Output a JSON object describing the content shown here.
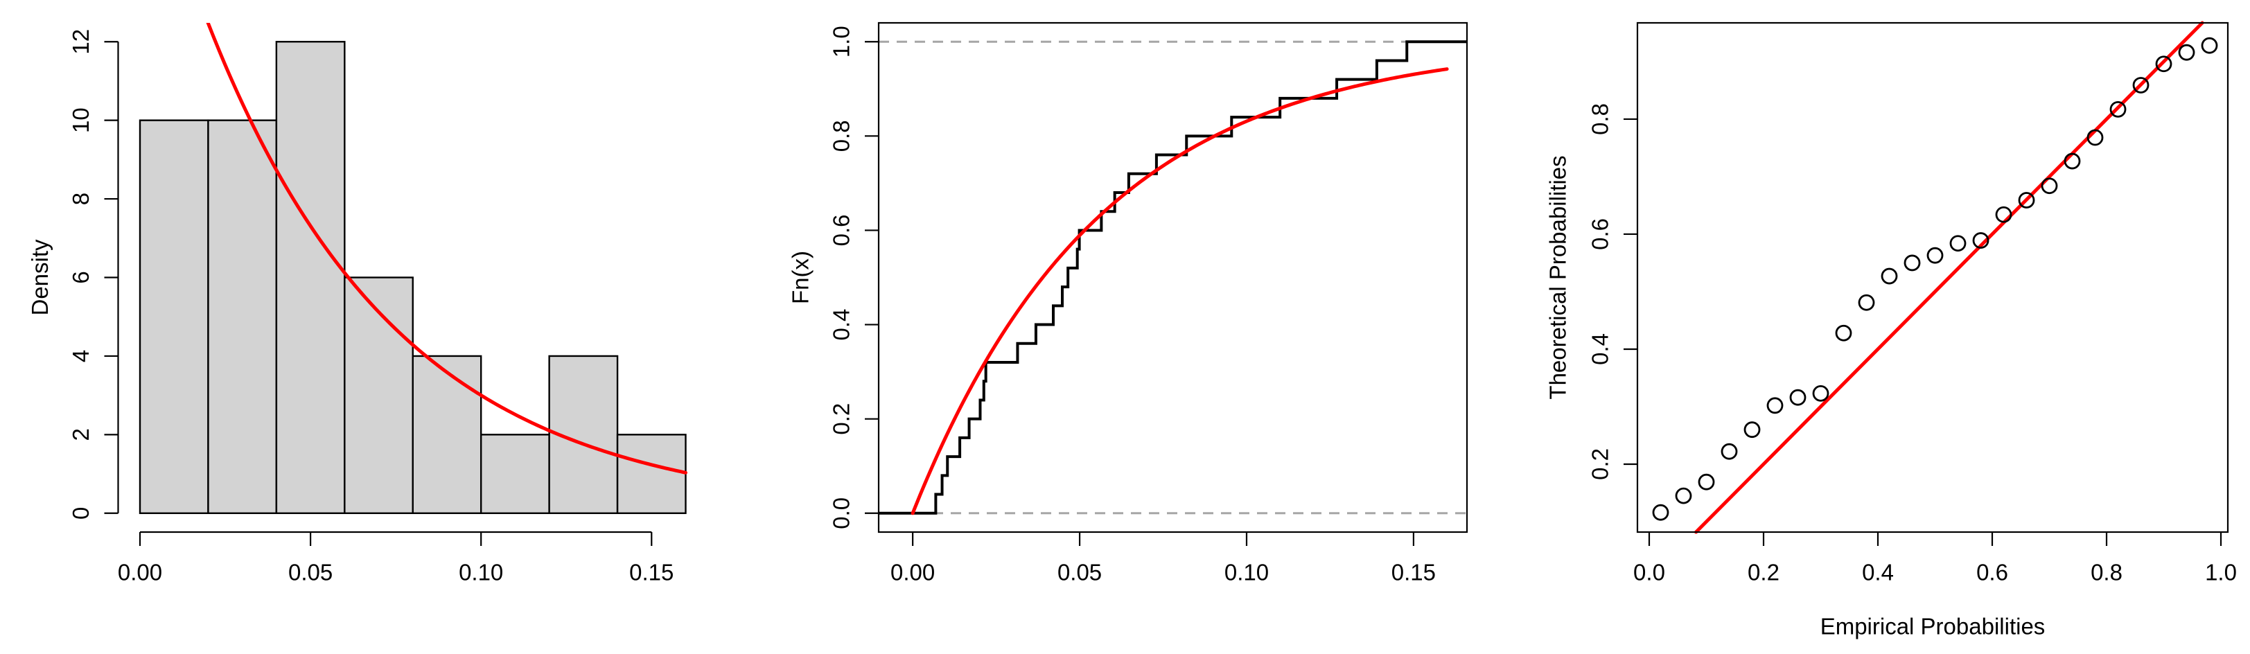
{
  "figure": {
    "background": "#ffffff",
    "description": "Three-panel exponential distribution fit diagnostics"
  },
  "colors": {
    "fit_red": "#ff0000",
    "bar_fill": "#d3d3d3",
    "line_black": "#000000",
    "ref_dash_gray": "#a6a6a6"
  },
  "chart_data": [
    {
      "id": "histogram",
      "type": "bar",
      "title": "",
      "xlabel": "",
      "ylabel": "Density",
      "bin_edges": [
        0.0,
        0.02,
        0.04,
        0.06,
        0.08,
        0.1,
        0.12,
        0.14,
        0.16
      ],
      "values": [
        10,
        10,
        12,
        6,
        4,
        2,
        4,
        2
      ],
      "x_ticks": {
        "values": [
          0.0,
          0.05,
          0.1,
          0.15
        ],
        "labels": [
          "0.00",
          "0.05",
          "0.10",
          "0.15"
        ]
      },
      "y_ticks": {
        "values": [
          0,
          2,
          4,
          6,
          8,
          10,
          12
        ],
        "labels": [
          "0",
          "2",
          "4",
          "6",
          "8",
          "10",
          "12"
        ]
      },
      "xlim": [
        -0.0064,
        0.1664
      ],
      "ylim": [
        -0.48,
        12.48
      ],
      "grid": false,
      "fit_curve": {
        "type": "exponential_pdf",
        "rate": 17.8,
        "x_range": [
          0.0,
          0.16
        ]
      }
    },
    {
      "id": "ecdf",
      "type": "line",
      "title": "",
      "xlabel": "",
      "ylabel": "Fn(x)",
      "n": 25,
      "sorted_data": [
        0.0069,
        0.0088,
        0.0104,
        0.0141,
        0.0169,
        0.0202,
        0.0213,
        0.0219,
        0.0314,
        0.0369,
        0.0421,
        0.0448,
        0.0465,
        0.0493,
        0.0499,
        0.0565,
        0.0605,
        0.0647,
        0.073,
        0.082,
        0.0955,
        0.11,
        0.127,
        0.139,
        0.148
      ],
      "x_ticks": {
        "values": [
          0.0,
          0.05,
          0.1,
          0.15
        ],
        "labels": [
          "0.00",
          "0.05",
          "0.10",
          "0.15"
        ]
      },
      "y_ticks": {
        "values": [
          0.0,
          0.2,
          0.4,
          0.6,
          0.8,
          1.0
        ],
        "labels": [
          "0.0",
          "0.2",
          "0.4",
          "0.6",
          "0.8",
          "1.0"
        ]
      },
      "xlim": [
        -0.0102,
        0.166
      ],
      "ylim": [
        -0.04,
        1.04
      ],
      "grid": false,
      "reference_lines_y": [
        0.0,
        1.0
      ],
      "fit_curve": {
        "type": "exponential_cdf",
        "rate": 17.8,
        "x_range": [
          0.0,
          0.16
        ]
      }
    },
    {
      "id": "pp_plot",
      "type": "scatter",
      "title": "",
      "xlabel": "Empirical Probabilities",
      "ylabel": "Theoretical Probabilities",
      "x": [
        0.02,
        0.06,
        0.1,
        0.14,
        0.18,
        0.22,
        0.26,
        0.3,
        0.34,
        0.38,
        0.42,
        0.46,
        0.5,
        0.54,
        0.58,
        0.62,
        0.66,
        0.7,
        0.74,
        0.78,
        0.82,
        0.86,
        0.9,
        0.94,
        0.98
      ],
      "y": [
        0.116,
        0.145,
        0.169,
        0.222,
        0.26,
        0.302,
        0.316,
        0.323,
        0.428,
        0.481,
        0.527,
        0.55,
        0.563,
        0.584,
        0.589,
        0.634,
        0.659,
        0.684,
        0.727,
        0.768,
        0.817,
        0.859,
        0.896,
        0.916,
        0.928
      ],
      "x_ticks": {
        "values": [
          0.0,
          0.2,
          0.4,
          0.6,
          0.8,
          1.0
        ],
        "labels": [
          "0.0",
          "0.2",
          "0.4",
          "0.6",
          "0.8",
          "1.0"
        ]
      },
      "y_ticks": {
        "values": [
          0.2,
          0.4,
          0.6,
          0.8
        ],
        "labels": [
          "0.2",
          "0.4",
          "0.6",
          "0.8"
        ]
      },
      "xlim": [
        -0.0206,
        1.0121
      ],
      "ylim": [
        0.0819,
        0.9674
      ],
      "grid": false,
      "identity_line": true
    }
  ]
}
